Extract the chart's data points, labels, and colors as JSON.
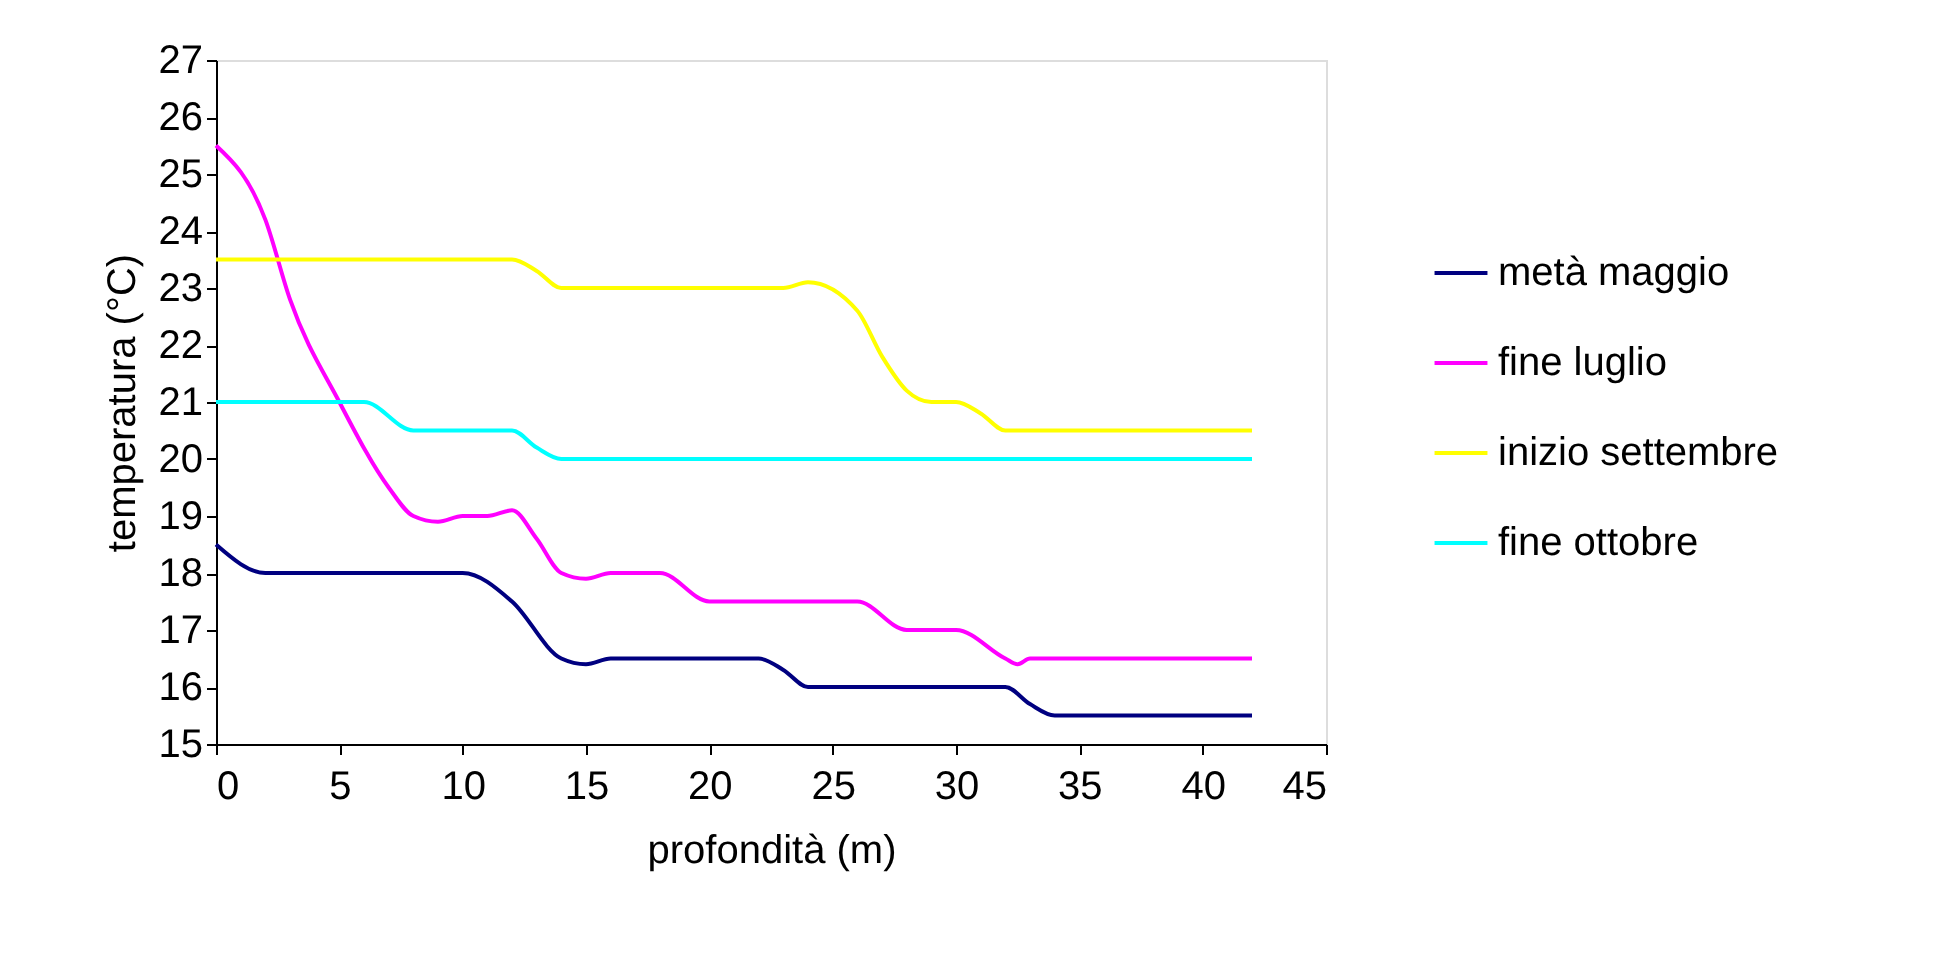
{
  "chart_data": {
    "type": "line",
    "xlabel": "profondità (m)",
    "ylabel": "temperatura (°C)",
    "xlim": [
      0,
      45
    ],
    "xticks": [
      0,
      5,
      10,
      15,
      20,
      25,
      30,
      35,
      40,
      45
    ],
    "ylim": [
      15,
      27
    ],
    "yticks": [
      15,
      16,
      17,
      18,
      19,
      20,
      21,
      22,
      23,
      24,
      25,
      26,
      27
    ],
    "grid": false,
    "legend": "right",
    "marker": "none",
    "line_style": "solid",
    "series": [
      {
        "name": "metà maggio",
        "color": "#000080",
        "x": [
          0,
          2,
          10,
          12,
          14,
          15,
          16,
          22,
          23,
          24,
          32,
          33,
          34,
          42
        ],
        "values": [
          18.5,
          18,
          18,
          17.5,
          16.5,
          16.4,
          16.5,
          16.5,
          16.3,
          16,
          16,
          15.7,
          15.5,
          15.5
        ]
      },
      {
        "name": "fine luglio",
        "color": "#ff00ff",
        "x": [
          0,
          2,
          3,
          5,
          7,
          8,
          9,
          10,
          11,
          12,
          13,
          14,
          15,
          16,
          18,
          20,
          26,
          28,
          30,
          32,
          32.5,
          33,
          42
        ],
        "values": [
          25.5,
          24.2,
          22.8,
          21,
          19.5,
          19,
          18.9,
          19,
          19,
          19.1,
          18.6,
          18,
          17.9,
          18,
          18,
          17.5,
          17.5,
          17,
          17,
          16.5,
          16.4,
          16.5,
          16.5
        ]
      },
      {
        "name": "inizio settembre",
        "color": "#ffff00",
        "x": [
          0,
          12,
          13,
          14,
          23,
          24,
          26,
          27,
          28,
          29,
          30,
          31,
          32,
          42
        ],
        "values": [
          23.5,
          23.5,
          23.3,
          23,
          23,
          23.1,
          22.6,
          21.8,
          21.2,
          21,
          21,
          20.8,
          20.5,
          20.5
        ]
      },
      {
        "name": "fine ottobre",
        "color": "#00ffff",
        "x": [
          0,
          6,
          8,
          12,
          13,
          14,
          42
        ],
        "values": [
          21,
          21,
          20.5,
          20.5,
          20.2,
          20,
          20
        ]
      }
    ]
  }
}
